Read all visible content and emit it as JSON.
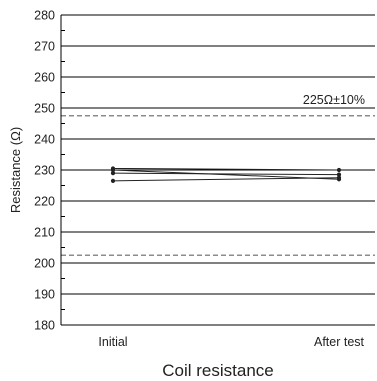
{
  "chart_data": {
    "type": "line",
    "title": "Coil resistance",
    "ylabel": "Resistance (Ω)",
    "xlabel": "",
    "categories": [
      "Initial",
      "After test"
    ],
    "ylim": [
      180,
      280
    ],
    "yticks": [
      180,
      190,
      200,
      210,
      220,
      230,
      240,
      250,
      260,
      270,
      280
    ],
    "grid": true,
    "series": [
      {
        "values": [
          230.5,
          230.0
        ]
      },
      {
        "values": [
          230.0,
          227.0
        ]
      },
      {
        "values": [
          229.0,
          228.5
        ]
      },
      {
        "values": [
          226.5,
          227.5
        ]
      }
    ],
    "reference_lines": [
      {
        "value": 247.5,
        "style": "dashed"
      },
      {
        "value": 202.5,
        "style": "dashed"
      }
    ],
    "annotation": "225Ω±10%",
    "colors": {
      "series": "#222222",
      "grid": "#000000",
      "reference": "#8c8c8c"
    }
  }
}
